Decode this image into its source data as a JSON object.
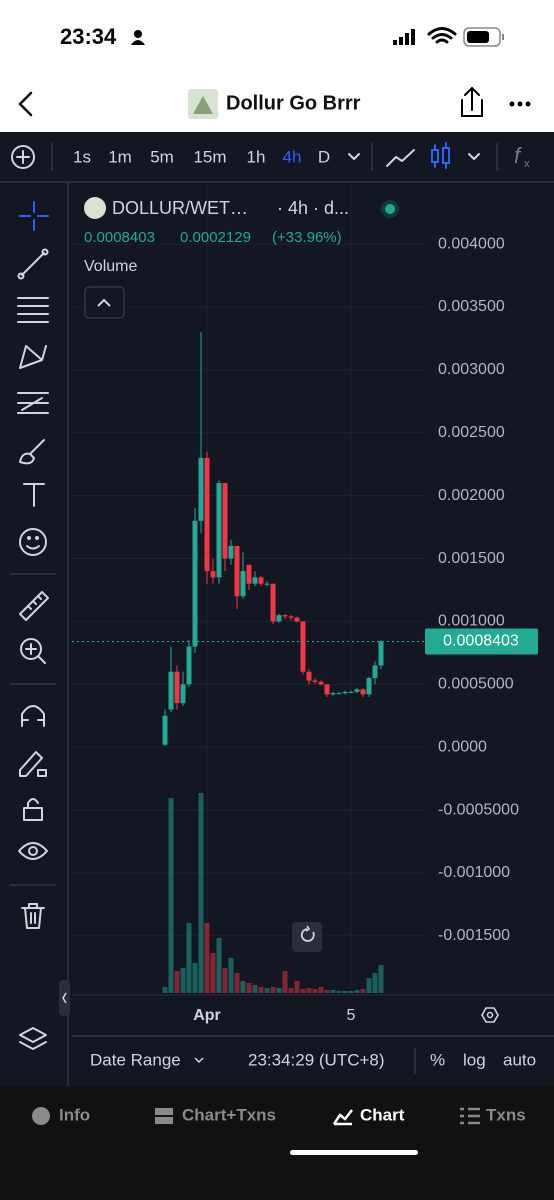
{
  "status_bar": {
    "time": "23:34"
  },
  "header": {
    "title": "Dollur Go Brrr"
  },
  "toolbar": {
    "timeframes": [
      "1s",
      "1m",
      "5m",
      "15m",
      "1h",
      "4h",
      "D"
    ],
    "active": "4h"
  },
  "chart_data": {
    "type": "candlestick",
    "symbol": "DOLLUR/WET…",
    "meta": "· 4h · d...",
    "change": "0.0002129",
    "change_pct": "(+33.96%)",
    "indicator": "Volume",
    "categories": [
      null,
      null,
      null,
      null,
      null,
      null,
      null,
      "Apr",
      null,
      null,
      null,
      null,
      null,
      null,
      null,
      null,
      null,
      null,
      null,
      null,
      null,
      null,
      null,
      null,
      null,
      null,
      null,
      null,
      null,
      null,
      null,
      "5",
      null,
      null,
      null,
      null,
      null
    ],
    "open": [
      2e-05,
      0.0003,
      0.0006,
      0.00035,
      0.0005,
      0.0008,
      0.0018,
      0.0023,
      0.0014,
      0.00135,
      0.0021,
      0.0015,
      0.0016,
      0.0012,
      0.00145,
      0.0013,
      0.00135,
      0.0013,
      0.0013,
      0.001,
      0.00105,
      0.00104,
      0.00103,
      0.001,
      0.0006,
      0.00053,
      0.00052,
      0.0005,
      0.00042,
      0.00043,
      0.00043,
      0.00044,
      0.00044,
      0.00046,
      0.00042,
      0.00055,
      0.00065
    ],
    "high": [
      0.0003,
      0.0008,
      0.00065,
      0.0006,
      0.00085,
      0.0019,
      0.0033,
      0.00235,
      0.0015,
      0.00212,
      0.0021,
      0.00165,
      0.0016,
      0.00155,
      0.00145,
      0.0014,
      0.00136,
      0.00132,
      0.0013,
      0.00106,
      0.00106,
      0.00105,
      0.00104,
      0.001,
      0.00062,
      0.00055,
      0.00053,
      0.0005,
      0.00044,
      0.00044,
      0.00045,
      0.00045,
      0.00047,
      0.00047,
      0.00056,
      0.00068,
      0.00085
    ],
    "low": [
      1e-05,
      0.00028,
      0.0003,
      0.00033,
      0.00048,
      0.00075,
      0.0017,
      0.0013,
      0.0013,
      0.0013,
      0.0014,
      0.00145,
      0.0011,
      0.00118,
      0.00125,
      0.00128,
      0.00128,
      0.00128,
      0.00098,
      0.00099,
      0.00102,
      0.00101,
      0.00099,
      0.00058,
      0.0005,
      0.0005,
      0.00049,
      0.0004,
      0.00041,
      0.00042,
      0.00042,
      0.00043,
      0.00043,
      0.0004,
      0.0004,
      0.0005,
      0.00062
    ],
    "close": [
      0.00025,
      0.0006,
      0.00035,
      0.0005,
      0.0008,
      0.0018,
      0.0023,
      0.0014,
      0.00135,
      0.0021,
      0.0015,
      0.0016,
      0.0012,
      0.0014,
      0.0013,
      0.00135,
      0.0013,
      0.0013,
      0.001,
      0.00105,
      0.00104,
      0.00103,
      0.001,
      0.0006,
      0.00053,
      0.00052,
      0.0005,
      0.00042,
      0.00043,
      0.00043,
      0.00044,
      0.00044,
      0.00046,
      0.00042,
      0.00055,
      0.00065,
      0.0008403
    ],
    "volume": [
      6,
      195,
      22,
      25,
      70,
      30,
      200,
      70,
      40,
      55,
      25,
      35,
      20,
      12,
      10,
      8,
      6,
      5,
      6,
      5,
      22,
      5,
      12,
      4,
      5,
      4,
      6,
      3,
      3,
      2,
      2,
      2,
      3,
      4,
      15,
      20,
      28
    ],
    "ylim": [
      -0.00197,
      0.00443
    ],
    "yticks": [
      {
        "value": 0.004,
        "label": "0.004000"
      },
      {
        "value": 0.0035,
        "label": "0.003500"
      },
      {
        "value": 0.003,
        "label": "0.003000"
      },
      {
        "value": 0.0025,
        "label": "0.002500"
      },
      {
        "value": 0.002,
        "label": "0.002000"
      },
      {
        "value": 0.0015,
        "label": "0.001500"
      },
      {
        "value": 0.001,
        "label": "0.001000"
      },
      {
        "value": 0.0005,
        "label": "0.0005000"
      },
      {
        "value": 0,
        "label": "0.0000"
      },
      {
        "value": -0.0005,
        "label": "-0.0005000"
      },
      {
        "value": -0.001,
        "label": "-0.001000"
      },
      {
        "value": -0.0015,
        "label": "-0.001500"
      }
    ],
    "up_color": "#22ab94",
    "down_color": "#f23645",
    "grid": true
  },
  "footer": {
    "date_range": "Date Range",
    "clock": "23:34:29 (UTC+8)",
    "percent": "%",
    "log": "log",
    "auto": "auto"
  },
  "tabs": [
    "Info",
    "Chart+Txns",
    "Chart",
    "Txns"
  ]
}
